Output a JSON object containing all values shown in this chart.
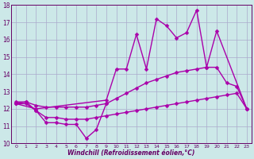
{
  "xlabel": "Windchill (Refroidissement éolien,°C)",
  "bg_color": "#cce8e8",
  "grid_color": "#aaaacc",
  "line_color": "#aa00aa",
  "xlim": [
    -0.5,
    23.5
  ],
  "ylim": [
    10,
    18
  ],
  "xticks": [
    0,
    1,
    2,
    3,
    4,
    5,
    6,
    7,
    8,
    9,
    10,
    11,
    12,
    13,
    14,
    15,
    16,
    17,
    18,
    19,
    20,
    21,
    22,
    23
  ],
  "yticks": [
    10,
    11,
    12,
    13,
    14,
    15,
    16,
    17,
    18
  ],
  "series": [
    {
      "x": [
        0,
        1,
        2,
        3,
        4,
        5,
        6,
        7,
        8,
        9
      ],
      "y": [
        12.4,
        12.4,
        11.9,
        11.2,
        11.2,
        11.1,
        11.1,
        10.3,
        10.8,
        12.3
      ]
    },
    {
      "x": [
        0,
        1,
        2,
        3,
        4,
        5,
        6,
        7,
        8,
        9,
        10,
        11,
        12,
        13,
        14,
        15,
        16,
        17,
        18,
        19,
        20,
        21,
        22,
        23
      ],
      "y": [
        12.3,
        12.3,
        11.9,
        11.5,
        11.5,
        11.4,
        11.4,
        11.4,
        11.5,
        11.6,
        11.7,
        11.8,
        11.9,
        12.0,
        12.1,
        12.2,
        12.3,
        12.4,
        12.5,
        12.6,
        12.7,
        12.8,
        12.9,
        12.0
      ]
    },
    {
      "x": [
        0,
        1,
        2,
        3,
        4,
        5,
        6,
        7,
        8,
        9,
        10,
        11,
        12,
        13,
        14,
        15,
        16,
        17,
        18,
        19,
        20,
        21,
        22,
        23
      ],
      "y": [
        12.3,
        12.4,
        12.2,
        12.1,
        12.1,
        12.1,
        12.1,
        12.1,
        12.2,
        12.3,
        12.6,
        12.9,
        13.2,
        13.5,
        13.7,
        13.9,
        14.1,
        14.2,
        14.3,
        14.4,
        14.4,
        13.5,
        13.3,
        12.0
      ]
    },
    {
      "x": [
        0,
        2,
        9,
        10,
        11,
        12,
        13,
        14,
        15,
        16,
        17,
        18,
        19,
        20,
        23
      ],
      "y": [
        12.3,
        12.0,
        12.5,
        14.3,
        14.3,
        16.3,
        14.3,
        17.2,
        16.8,
        16.1,
        16.4,
        17.7,
        14.4,
        16.5,
        12.0
      ]
    }
  ]
}
